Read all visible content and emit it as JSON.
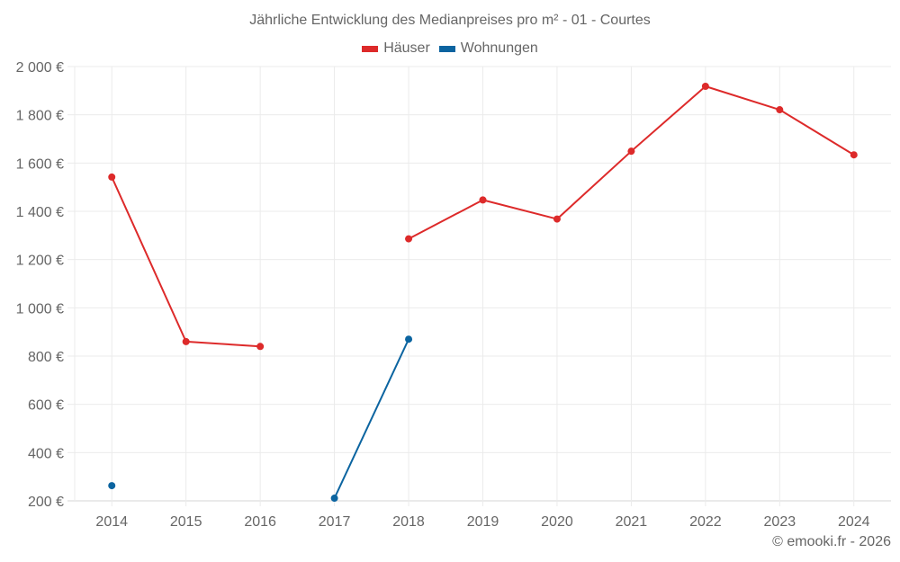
{
  "chart_data": {
    "type": "line",
    "title": "Jährliche Entwicklung des Medianpreises pro m² - 01 - Courtes",
    "xlabel": "",
    "ylabel": "",
    "categories": [
      "2014",
      "2015",
      "2016",
      "2017",
      "2018",
      "2019",
      "2020",
      "2021",
      "2022",
      "2023",
      "2024"
    ],
    "series": [
      {
        "name": "Häuser",
        "color": "#dd2a2a",
        "values": [
          1542,
          860,
          840,
          null,
          1286,
          1447,
          1368,
          1649,
          1918,
          1821,
          1634
        ]
      },
      {
        "name": "Wohnungen",
        "color": "#0b64a0",
        "values": [
          263,
          null,
          null,
          211,
          870,
          null,
          null,
          null,
          null,
          null,
          null
        ]
      }
    ],
    "ylim": [
      200,
      2000
    ],
    "yticks": [
      200,
      400,
      600,
      800,
      1000,
      1200,
      1400,
      1600,
      1800,
      2000
    ],
    "ytick_labels": [
      "200 €",
      "400 €",
      "600 €",
      "800 €",
      "1 000 €",
      "1 200 €",
      "1 400 €",
      "1 600 €",
      "1 800 €",
      "2 000 €"
    ],
    "grid": true,
    "legend_position": "top"
  },
  "legend": {
    "items": [
      {
        "label": "Häuser",
        "color": "#dd2a2a"
      },
      {
        "label": "Wohnungen",
        "color": "#0b64a0"
      }
    ]
  },
  "credit": "© emooki.fr - 2026"
}
